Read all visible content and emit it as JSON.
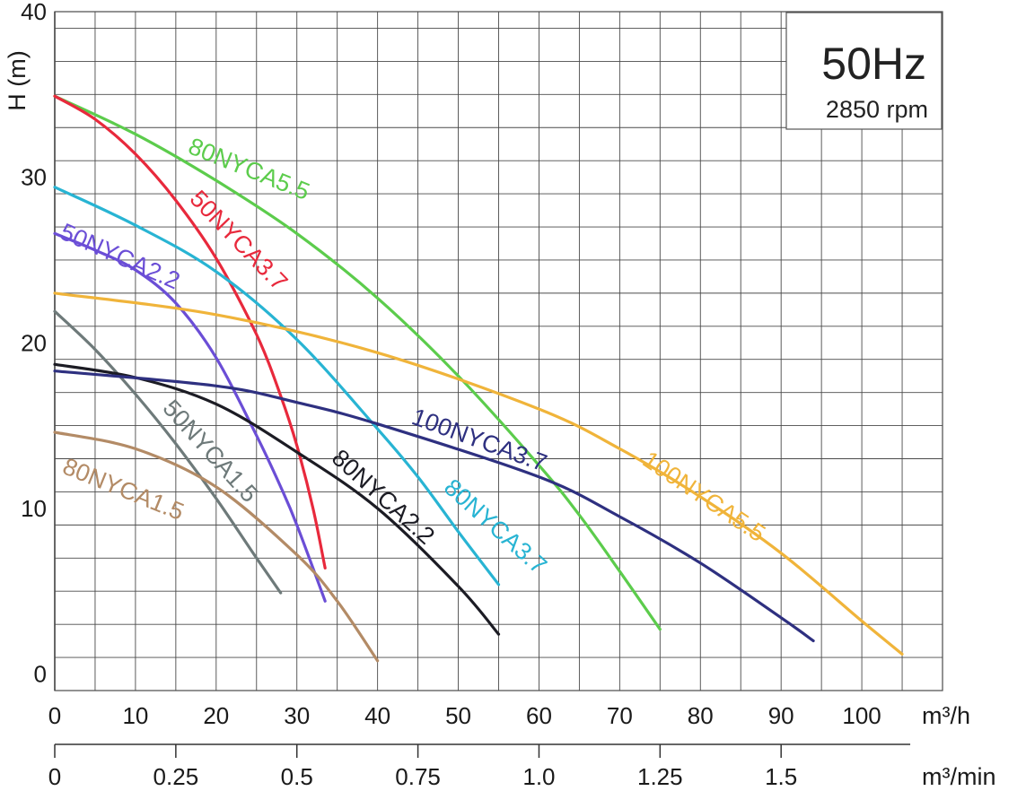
{
  "chart_data": {
    "type": "line",
    "frequency_label": "50Hz",
    "speed_label": "2850 rpm",
    "ylabel": "H (m)",
    "xlabel": "m³/h",
    "x2label": "m³/min",
    "xlim": [
      0,
      110
    ],
    "ylim": [
      -1,
      40
    ],
    "x_ticks": [
      "0",
      "10",
      "20",
      "30",
      "40",
      "50",
      "60",
      "70",
      "80",
      "90",
      "100"
    ],
    "y_ticks": [
      "0",
      "10",
      "20",
      "30",
      "40"
    ],
    "x2_ticks": [
      "0",
      "0.25",
      "0.5",
      "0.75",
      "1.0",
      "1.25",
      "1.5"
    ],
    "series": [
      {
        "name": "80NYCA5.5",
        "color": "#5ccc4c",
        "x": [
          0,
          10,
          20,
          30,
          40,
          50,
          60,
          65,
          70,
          75
        ],
        "y": [
          34.9,
          32.6,
          29.8,
          26.6,
          22.7,
          18.0,
          12.6,
          9.6,
          6.2,
          2.7
        ]
      },
      {
        "name": "50NYCA3.7",
        "color": "#e8293c",
        "x": [
          0,
          5,
          10,
          15,
          20,
          25,
          28,
          30,
          32,
          33.5
        ],
        "y": [
          34.9,
          33.5,
          31.4,
          28.6,
          25.1,
          20.5,
          16.8,
          13.8,
          10.0,
          6.4
        ]
      },
      {
        "name": "80NYCA3.7",
        "color": "#28b4d3",
        "x": [
          0,
          10,
          20,
          30,
          40,
          45,
          50,
          55
        ],
        "y": [
          29.4,
          27.1,
          24.3,
          20.2,
          14.8,
          11.9,
          8.6,
          5.4
        ]
      },
      {
        "name": "50NYCA2.2",
        "color": "#6b4ed6",
        "x": [
          0,
          5,
          10,
          15,
          20,
          25,
          28,
          30,
          33.5
        ],
        "y": [
          26.6,
          25.6,
          24.4,
          22.4,
          19.1,
          14.4,
          11.3,
          9.0,
          4.4
        ]
      },
      {
        "name": "100NYCA5.5",
        "color": "#f0b43a",
        "x": [
          0,
          20,
          40,
          60,
          70,
          80,
          90,
          100,
          105
        ],
        "y": [
          23.0,
          21.7,
          19.4,
          16.0,
          13.6,
          10.7,
          7.3,
          3.2,
          1.2
        ]
      },
      {
        "name": "50NYCA1.5",
        "color": "#6e7a7a",
        "x": [
          0,
          5,
          10,
          15,
          20,
          25,
          28
        ],
        "y": [
          21.9,
          19.6,
          16.9,
          13.9,
          10.6,
          7.0,
          4.9
        ]
      },
      {
        "name": "80NYCA2.2",
        "color": "#1c1c24",
        "x": [
          0,
          10,
          20,
          30,
          40,
          50,
          55
        ],
        "y": [
          18.7,
          17.9,
          16.3,
          13.4,
          10.0,
          5.3,
          2.4
        ]
      },
      {
        "name": "100NYCA3.7",
        "color": "#2e3080",
        "x": [
          0,
          20,
          30,
          40,
          60,
          70,
          80,
          90,
          94
        ],
        "y": [
          18.3,
          17.4,
          16.4,
          15.1,
          11.9,
          9.5,
          6.7,
          3.4,
          2.0
        ]
      },
      {
        "name": "80NYCA1.5",
        "color": "#b38b66",
        "x": [
          0,
          10,
          20,
          30,
          35,
          40
        ],
        "y": [
          14.6,
          13.6,
          11.3,
          7.2,
          4.4,
          0.8
        ]
      }
    ]
  }
}
